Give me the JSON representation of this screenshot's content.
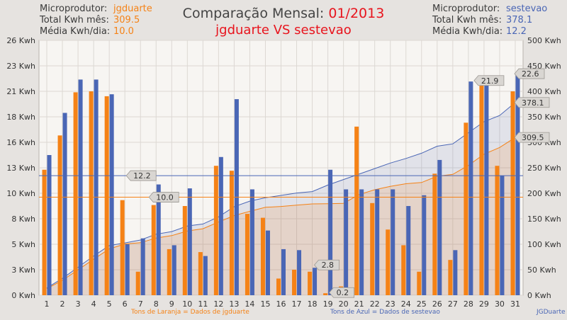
{
  "header": {
    "left": {
      "producer_label": "Microprodutor:",
      "producer_value": "jgduarte",
      "total_label": "Total Kwh mês:",
      "total_value": "309.5",
      "avg_label": "Média Kwh/dia:",
      "avg_value": "10.0"
    },
    "right": {
      "producer_label": "Microprodutor:",
      "producer_value": "sestevao",
      "total_label": "Total Kwh mês:",
      "total_value": "378.1",
      "avg_label": "Média Kwh/dia:",
      "avg_value": "12.2"
    },
    "title_prefix": "Comparação Mensal: ",
    "title_month": "01/2013",
    "subtitle": "jgduarte VS sestevao"
  },
  "footer": {
    "left_note": "Tons de Laranja = Dados de jgduarte",
    "right_note": "Tons de Azul = Dados de sestevao",
    "credit": "JGDuarte"
  },
  "colors": {
    "orange": "#f58216",
    "blue": "#4a66b5",
    "plot_bg": "#f7f5f2",
    "grid": "#dcd8d3"
  },
  "chart_data": {
    "type": "bar",
    "categories": [
      "1",
      "2",
      "3",
      "4",
      "5",
      "6",
      "7",
      "8",
      "9",
      "10",
      "11",
      "12",
      "13",
      "14",
      "15",
      "16",
      "17",
      "18",
      "19",
      "20",
      "21",
      "22",
      "23",
      "24",
      "25",
      "26",
      "27",
      "28",
      "29",
      "30",
      "31"
    ],
    "series": [
      {
        "name": "jgduarte",
        "values": [
          12.8,
          16.3,
          20.7,
          20.8,
          20.3,
          9.7,
          2.4,
          9.2,
          4.7,
          9.1,
          4.4,
          13.2,
          12.7,
          8.3,
          7.9,
          1.7,
          2.6,
          2.4,
          0.2,
          0.9,
          17.2,
          9.4,
          6.7,
          5.1,
          2.4,
          12.4,
          3.6,
          17.6,
          21.9,
          13.2,
          20.8
        ]
      },
      {
        "name": "sestevao",
        "values": [
          14.3,
          18.6,
          22.0,
          22.0,
          20.5,
          5.2,
          5.8,
          11.3,
          5.1,
          10.9,
          4.0,
          14.1,
          20.0,
          10.8,
          6.6,
          4.7,
          4.6,
          2.8,
          12.8,
          10.8,
          10.8,
          10.8,
          10.8,
          9.1,
          10.2,
          13.8,
          4.6,
          21.8,
          21.6,
          12.2,
          22.6
        ]
      }
    ],
    "cumulative": {
      "jgduarte": [
        12.8,
        29.1,
        49.8,
        70.6,
        90.9,
        100.6,
        103.0,
        112.2,
        116.9,
        126.0,
        130.4,
        143.6,
        156.3,
        164.6,
        172.5,
        174.2,
        176.8,
        179.2,
        179.4,
        180.3,
        197.5,
        206.9,
        213.6,
        218.7,
        221.1,
        233.5,
        237.1,
        254.7,
        276.6,
        289.8,
        309.5
      ],
      "sestevao": [
        14.3,
        32.9,
        54.9,
        76.9,
        97.4,
        102.6,
        108.4,
        119.7,
        124.8,
        135.7,
        139.7,
        153.8,
        173.8,
        184.6,
        191.2,
        195.9,
        200.5,
        203.3,
        216.1,
        226.9,
        237.7,
        248.5,
        259.3,
        268.4,
        278.6,
        292.4,
        297.0,
        318.8,
        340.4,
        352.6,
        378.1
      ]
    },
    "averages": {
      "jgduarte": 10.0,
      "sestevao": 12.2
    },
    "left_axis": {
      "ticks": [
        "0 Kwh",
        "3 Kwh",
        "5 Kwh",
        "8 Kwh",
        "10 Kwh",
        "13 Kwh",
        "16 Kwh",
        "18 Kwh",
        "21 Kwh",
        "23 Kwh",
        "26 Kwh"
      ],
      "max": 26
    },
    "right_axis": {
      "ticks": [
        "0 Kwh",
        "50 Kwh",
        "100 Kwh",
        "150 Kwh",
        "200 Kwh",
        "250 Kwh",
        "300 Kwh",
        "350 Kwh",
        "400 Kwh",
        "450 Kwh",
        "500 Kwh"
      ],
      "max": 500
    },
    "callouts": {
      "avg_blue": "12.2",
      "avg_orange": "10.0",
      "min_blue": "2.8",
      "min_orange": "0.2",
      "max_orange": "21.9",
      "max_blue": "22.6",
      "total_blue": "378.1",
      "total_orange": "309.5"
    },
    "grid": true
  }
}
